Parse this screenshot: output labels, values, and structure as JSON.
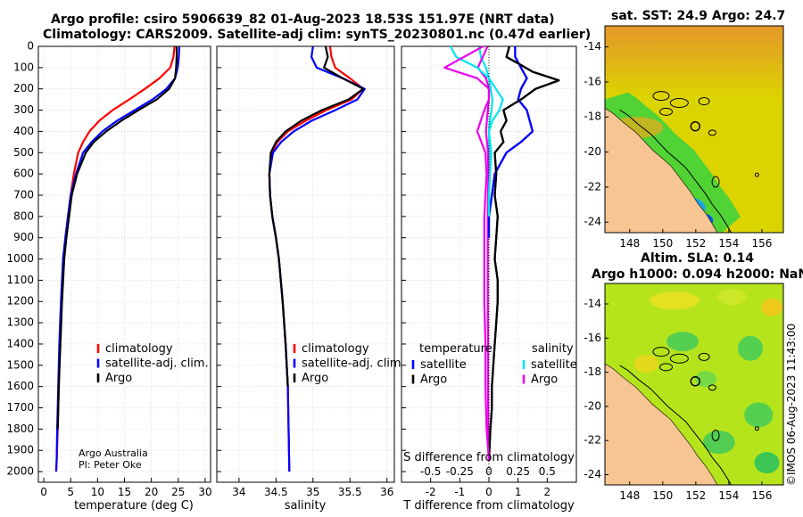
{
  "titles": {
    "line1": "Argo profile: csiro 5906639_82 01-Aug-2023 18.53S 151.97E (NRT data)",
    "line2": "Climatology: CARS2009. Satellite-adj clim: synTS_20230801.nc (0.47d earlier)",
    "sst": "sat. SST: 24.9 Argo: 24.7",
    "sla1": "Altim. SLA: 0.14",
    "sla2": "Argo h1000: 0.094 h2000: NaN"
  },
  "timestamp": "©IMOS 06-Aug-2023 11:43:00",
  "colors": {
    "climatology": "#ff0000",
    "satellite": "#0000ff",
    "argo": "#000000",
    "s_sat": "#00e5ee",
    "s_argo": "#ee00ee",
    "land": "#f6c592"
  },
  "chart_data": [
    {
      "id": "temperature",
      "type": "line",
      "xlabel": "temperature (deg C)",
      "ylabel": "",
      "xlim": [
        -1,
        31
      ],
      "ylim": [
        2050,
        0
      ],
      "xticks": [
        0,
        5,
        10,
        15,
        20,
        25,
        30
      ],
      "yticks": [
        0,
        100,
        200,
        300,
        400,
        500,
        600,
        700,
        800,
        900,
        1000,
        1100,
        1200,
        1300,
        1400,
        1500,
        1600,
        1700,
        1800,
        1900,
        2000
      ],
      "legend": [
        "climatology",
        "satellite-adj. clim.",
        "Argo"
      ],
      "annotation": [
        "Argo Australia",
        "PI: Peter Oke"
      ],
      "series": [
        {
          "name": "climatology",
          "color": "#ff0000",
          "x": [
            24.3,
            24.1,
            23.5,
            21.5,
            18.8,
            15.9,
            12.8,
            10.3,
            8.5,
            7.3,
            6.4,
            5.6,
            5.0,
            4.5,
            4.1,
            3.6,
            3.3,
            3.0,
            2.8,
            2.6,
            2.4,
            2.3
          ],
          "y": [
            0,
            50,
            100,
            150,
            200,
            250,
            300,
            350,
            400,
            450,
            500,
            600,
            700,
            800,
            900,
            1000,
            1200,
            1400,
            1600,
            1800,
            1950,
            2000
          ]
        },
        {
          "name": "satellite-adj. clim.",
          "color": "#0000ff",
          "x": [
            25.2,
            25.1,
            24.9,
            24.4,
            22.8,
            20.2,
            16.9,
            13.6,
            10.9,
            8.9,
            7.3,
            6.0,
            5.0,
            4.5,
            4.0,
            3.6,
            3.2,
            2.9,
            2.7,
            2.5,
            2.4,
            2.3
          ],
          "y": [
            0,
            50,
            100,
            150,
            200,
            250,
            300,
            350,
            400,
            450,
            500,
            600,
            700,
            800,
            900,
            1000,
            1200,
            1400,
            1600,
            1800,
            1950,
            2000
          ]
        },
        {
          "name": "Argo",
          "color": "#000000",
          "x": [
            24.7,
            24.7,
            24.6,
            24.4,
            23.3,
            21.0,
            17.6,
            14.4,
            11.6,
            9.3,
            7.8,
            6.2,
            5.2,
            4.7,
            4.2,
            3.8,
            3.4,
            3.1,
            2.8,
            2.6
          ],
          "y": [
            0,
            50,
            100,
            150,
            200,
            250,
            300,
            350,
            400,
            450,
            500,
            600,
            700,
            800,
            900,
            1000,
            1200,
            1400,
            1600,
            1800
          ]
        }
      ]
    },
    {
      "id": "salinity",
      "type": "line",
      "xlabel": "salinity",
      "xlim": [
        33.7,
        36.1
      ],
      "ylim": [
        2050,
        0
      ],
      "xticks": [
        34,
        34.5,
        35,
        35.5,
        36
      ],
      "legend": [
        "climatology",
        "satellite-adj. clim.",
        "Argo"
      ],
      "series": [
        {
          "name": "climatology",
          "color": "#ff0000",
          "x": [
            35.23,
            35.25,
            35.3,
            35.5,
            35.68,
            35.52,
            35.18,
            34.9,
            34.66,
            34.52,
            34.44,
            34.41,
            34.42,
            34.45,
            34.5,
            34.54,
            34.59,
            34.63,
            34.66,
            34.68
          ],
          "y": [
            0,
            50,
            100,
            150,
            200,
            250,
            300,
            350,
            400,
            450,
            500,
            600,
            700,
            800,
            900,
            1000,
            1200,
            1400,
            1600,
            2000
          ]
        },
        {
          "name": "satellite-adj. clim.",
          "color": "#0000ff",
          "x": [
            35.0,
            34.98,
            35.05,
            35.4,
            35.7,
            35.6,
            35.3,
            34.98,
            34.74,
            34.57,
            34.46,
            34.41,
            34.42,
            34.45,
            34.5,
            34.54,
            34.59,
            34.63,
            34.66,
            34.68
          ],
          "y": [
            0,
            50,
            100,
            150,
            200,
            250,
            300,
            350,
            400,
            450,
            500,
            600,
            700,
            800,
            900,
            1000,
            1200,
            1400,
            1600,
            2000
          ]
        },
        {
          "name": "Argo",
          "color": "#000000",
          "x": [
            35.17,
            35.2,
            35.15,
            35.4,
            35.68,
            35.48,
            35.12,
            34.84,
            34.63,
            34.5,
            34.43,
            34.41,
            34.42,
            34.45,
            34.5,
            34.54,
            34.59,
            34.63,
            34.66
          ],
          "y": [
            0,
            50,
            100,
            150,
            200,
            250,
            300,
            350,
            400,
            450,
            500,
            600,
            700,
            800,
            900,
            1000,
            1200,
            1400,
            1600
          ]
        }
      ]
    },
    {
      "id": "difference",
      "type": "line",
      "xlabel": "T difference from climatology",
      "xlabel_top": "S difference from climatology",
      "xlim": [
        -3.0,
        3.0
      ],
      "ylim": [
        2050,
        0
      ],
      "xticks": [
        -2,
        -1,
        0,
        1,
        2
      ],
      "xticks_s": [
        -0.5,
        -0.25,
        0,
        0.25,
        0.5
      ],
      "xticks_s_labels": [
        "-0.5",
        "-0.25",
        "0",
        "0.25",
        "0.5"
      ],
      "legend_t_title": "temperature",
      "legend_s_title": "salinity",
      "legend_t": [
        "satellite",
        "Argo"
      ],
      "legend_s": [
        "satellite",
        "Argo"
      ],
      "series": [
        {
          "name": "T satellite",
          "color": "#0000ff",
          "x": [
            0.9,
            0.9,
            1.1,
            1.3,
            1.1,
            1.0,
            1.3,
            1.4,
            1.5,
            1.1,
            0.6,
            0.2,
            0.1,
            0.0,
            0.0
          ],
          "y": [
            0,
            50,
            100,
            150,
            200,
            250,
            300,
            350,
            400,
            450,
            500,
            600,
            700,
            800,
            900
          ]
        },
        {
          "name": "T Argo",
          "color": "#000000",
          "x": [
            0.7,
            0.6,
            1.0,
            1.5,
            2.4,
            1.6,
            1.1,
            0.5,
            0.6,
            0.4,
            0.5,
            0.2,
            0.25,
            0.2,
            0.3,
            0.25,
            0.2,
            0.3,
            0.3,
            0.25,
            0.2,
            0.15,
            0.1,
            0.1,
            0.05,
            0.0
          ],
          "y": [
            0,
            50,
            80,
            120,
            160,
            200,
            250,
            300,
            350,
            400,
            450,
            500,
            600,
            700,
            800,
            900,
            1000,
            1100,
            1200,
            1300,
            1400,
            1500,
            1600,
            1700,
            1800,
            1950
          ]
        },
        {
          "name": "S satellite",
          "color": "#00e5ee",
          "x": [
            -0.33,
            -0.28,
            -0.1,
            0.0,
            0.06,
            0.12,
            0.09,
            0.03,
            0.0,
            0.02,
            0.01,
            0.0,
            0.0
          ],
          "y": [
            0,
            50,
            100,
            150,
            200,
            250,
            300,
            350,
            400,
            500,
            600,
            700,
            800
          ]
        },
        {
          "name": "S Argo",
          "color": "#ee00ee",
          "x": [
            -0.05,
            -0.38,
            -0.1,
            0.0,
            0.0,
            -0.04,
            -0.1,
            -0.03,
            -0.02,
            -0.03,
            -0.04,
            -0.04,
            -0.04,
            -0.03,
            -0.03,
            -0.02,
            0.0
          ],
          "y": [
            0,
            100,
            150,
            200,
            250,
            300,
            400,
            500,
            600,
            700,
            800,
            1000,
            1200,
            1400,
            1600,
            1800,
            1950
          ]
        }
      ]
    },
    {
      "id": "sst_map",
      "type": "heatmap",
      "title": "sat. SST: 24.9 Argo: 24.7",
      "xlim": [
        146.5,
        157.3
      ],
      "ylim": [
        -24.6,
        -12.8
      ],
      "xticks": [
        148,
        150,
        152,
        154,
        156
      ],
      "yticks": [
        -14,
        -16,
        -18,
        -20,
        -22,
        -24
      ],
      "argo_position": {
        "lon": 151.97,
        "lat": -18.53
      }
    },
    {
      "id": "sla_map",
      "type": "heatmap",
      "title": "Altim. SLA: 0.14",
      "xlim": [
        146.5,
        157.3
      ],
      "ylim": [
        -24.6,
        -12.8
      ],
      "xticks": [
        148,
        150,
        152,
        154,
        156
      ],
      "yticks": [
        -14,
        -16,
        -18,
        -20,
        -22,
        -24
      ],
      "argo_position": {
        "lon": 151.97,
        "lat": -18.53
      }
    }
  ]
}
